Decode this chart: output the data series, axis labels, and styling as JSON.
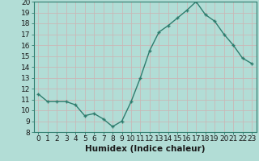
{
  "x": [
    0,
    1,
    2,
    3,
    4,
    5,
    6,
    7,
    8,
    9,
    10,
    11,
    12,
    13,
    14,
    15,
    16,
    17,
    18,
    19,
    20,
    21,
    22,
    23
  ],
  "y": [
    11.5,
    10.8,
    10.8,
    10.8,
    10.5,
    9.5,
    9.7,
    9.2,
    8.5,
    9.0,
    10.8,
    13.0,
    15.5,
    17.2,
    17.8,
    18.5,
    19.2,
    20.0,
    18.8,
    18.2,
    17.0,
    16.0,
    14.8,
    14.3
  ],
  "xlabel": "Humidex (Indice chaleur)",
  "ylim": [
    8,
    20
  ],
  "xlim_left": -0.5,
  "xlim_right": 23.5,
  "line_color": "#2e7d6e",
  "marker": "+",
  "bg_color": "#b2ddd6",
  "grid_color": "#c9b8b8",
  "yticks": [
    8,
    9,
    10,
    11,
    12,
    13,
    14,
    15,
    16,
    17,
    18,
    19,
    20
  ],
  "xticks": [
    0,
    1,
    2,
    3,
    4,
    5,
    6,
    7,
    8,
    9,
    10,
    11,
    12,
    13,
    14,
    15,
    16,
    17,
    18,
    19,
    20,
    21,
    22,
    23
  ],
  "xlabel_fontsize": 7.5,
  "tick_fontsize": 6.5
}
